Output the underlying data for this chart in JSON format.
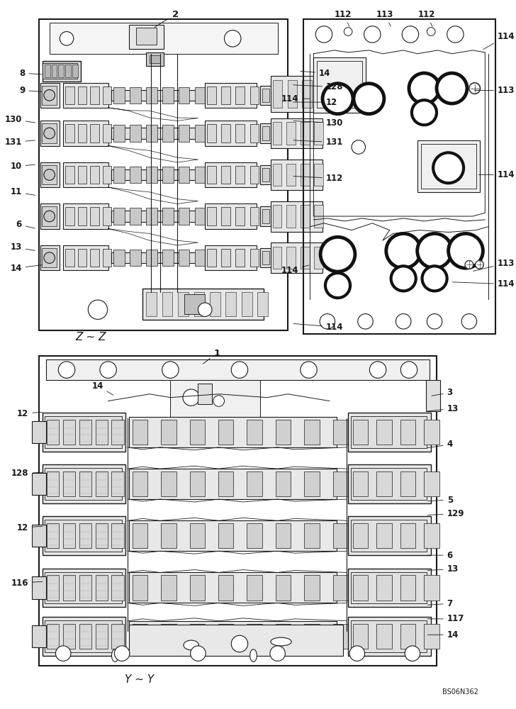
{
  "bg_color": "#ffffff",
  "line_color": "#1a1a1a",
  "fig_width": 7.28,
  "fig_height": 10.0,
  "dpi": 100,
  "watermark": "BS06N362",
  "zz_label": "Z ~ Z",
  "yy_label": "Y ~ Y"
}
